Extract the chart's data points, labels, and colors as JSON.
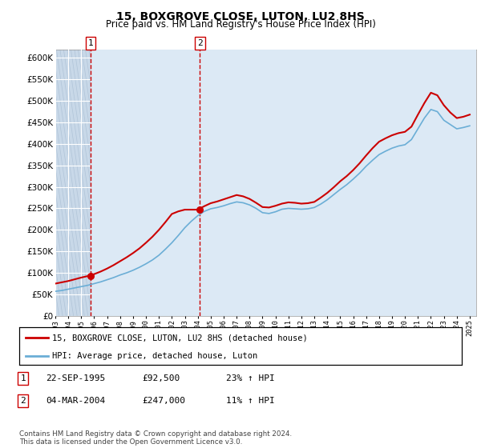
{
  "title": "15, BOXGROVE CLOSE, LUTON, LU2 8HS",
  "subtitle": "Price paid vs. HM Land Registry's House Price Index (HPI)",
  "title_fontsize": 10,
  "subtitle_fontsize": 8.5,
  "plot_bg_color": "#dce9f5",
  "hatch_bg_color": "#c8d8e8",
  "hatch_line_color": "#b0c4d8",
  "grid_color": "#ffffff",
  "ylim": [
    0,
    620000
  ],
  "yticks": [
    0,
    50000,
    100000,
    150000,
    200000,
    250000,
    300000,
    350000,
    400000,
    450000,
    500000,
    550000,
    600000
  ],
  "sale1_date": 1995.73,
  "sale1_price": 92500,
  "sale2_date": 2004.17,
  "sale2_price": 247000,
  "hpi_line_color": "#6baed6",
  "price_line_color": "#cc0000",
  "sale_marker_color": "#cc0000",
  "dashed_line_color": "#cc0000",
  "legend_label1": "15, BOXGROVE CLOSE, LUTON, LU2 8HS (detached house)",
  "legend_label2": "HPI: Average price, detached house, Luton",
  "annotation1_label": "1",
  "annotation1_date": "22-SEP-1995",
  "annotation1_price": "£92,500",
  "annotation1_hpi": "23% ↑ HPI",
  "annotation2_label": "2",
  "annotation2_date": "04-MAR-2004",
  "annotation2_price": "£247,000",
  "annotation2_hpi": "11% ↑ HPI",
  "footer": "Contains HM Land Registry data © Crown copyright and database right 2024.\nThis data is licensed under the Open Government Licence v3.0.",
  "hpi_years": [
    1993.0,
    1993.5,
    1994.0,
    1994.5,
    1995.0,
    1995.5,
    1996.0,
    1996.5,
    1997.0,
    1997.5,
    1998.0,
    1998.5,
    1999.0,
    1999.5,
    2000.0,
    2000.5,
    2001.0,
    2001.5,
    2002.0,
    2002.5,
    2003.0,
    2003.5,
    2004.0,
    2004.5,
    2005.0,
    2005.5,
    2006.0,
    2006.5,
    2007.0,
    2007.5,
    2008.0,
    2008.5,
    2009.0,
    2009.5,
    2010.0,
    2010.5,
    2011.0,
    2011.5,
    2012.0,
    2012.5,
    2013.0,
    2013.5,
    2014.0,
    2014.5,
    2015.0,
    2015.5,
    2016.0,
    2016.5,
    2017.0,
    2017.5,
    2018.0,
    2018.5,
    2019.0,
    2019.5,
    2020.0,
    2020.5,
    2021.0,
    2021.5,
    2022.0,
    2022.5,
    2023.0,
    2023.5,
    2024.0,
    2024.5,
    2025.0
  ],
  "hpi_values": [
    57000,
    59000,
    62000,
    65000,
    68000,
    71000,
    75000,
    79000,
    84000,
    89000,
    95000,
    100000,
    106000,
    113000,
    121000,
    130000,
    141000,
    155000,
    170000,
    187000,
    205000,
    220000,
    233000,
    243000,
    249000,
    252000,
    256000,
    261000,
    265000,
    263000,
    258000,
    250000,
    240000,
    238000,
    242000,
    248000,
    250000,
    249000,
    248000,
    249000,
    252000,
    260000,
    270000,
    282000,
    294000,
    305000,
    318000,
    332000,
    348000,
    362000,
    375000,
    383000,
    390000,
    395000,
    398000,
    410000,
    435000,
    460000,
    480000,
    475000,
    455000,
    445000,
    435000,
    438000,
    442000
  ],
  "price_years": [
    1993.0,
    1993.5,
    1994.0,
    1994.5,
    1995.0,
    1995.5,
    1996.0,
    1996.5,
    1997.0,
    1997.5,
    1998.0,
    1998.5,
    1999.0,
    1999.5,
    2000.0,
    2000.5,
    2001.0,
    2001.5,
    2002.0,
    2002.5,
    2003.0,
    2003.5,
    2004.0,
    2004.5,
    2005.0,
    2005.5,
    2006.0,
    2006.5,
    2007.0,
    2007.5,
    2008.0,
    2008.5,
    2009.0,
    2009.5,
    2010.0,
    2010.5,
    2011.0,
    2011.5,
    2012.0,
    2012.5,
    2013.0,
    2013.5,
    2014.0,
    2014.5,
    2015.0,
    2015.5,
    2016.0,
    2016.5,
    2017.0,
    2017.5,
    2018.0,
    2018.5,
    2019.0,
    2019.5,
    2020.0,
    2020.5,
    2021.0,
    2021.5,
    2022.0,
    2022.5,
    2023.0,
    2023.5,
    2024.0,
    2024.5,
    2025.0
  ],
  "price_values": [
    75000,
    78000,
    81000,
    85000,
    89000,
    92500,
    97000,
    103000,
    110000,
    118000,
    127000,
    136000,
    146000,
    157000,
    170000,
    184000,
    200000,
    218000,
    237000,
    243000,
    247000,
    247000,
    247000,
    255000,
    262000,
    266000,
    271000,
    276000,
    281000,
    278000,
    272000,
    263000,
    253000,
    252000,
    256000,
    261000,
    264000,
    263000,
    261000,
    262000,
    265000,
    275000,
    286000,
    299000,
    313000,
    325000,
    339000,
    355000,
    373000,
    390000,
    405000,
    413000,
    420000,
    425000,
    428000,
    440000,
    468000,
    495000,
    519000,
    513000,
    490000,
    473000,
    460000,
    463000,
    468000
  ],
  "xlim_start": 1993.0,
  "xlim_end": 2025.5,
  "xtick_years": [
    1993,
    1994,
    1995,
    1996,
    1997,
    1998,
    1999,
    2000,
    2001,
    2002,
    2003,
    2004,
    2005,
    2006,
    2007,
    2008,
    2009,
    2010,
    2011,
    2012,
    2013,
    2014,
    2015,
    2016,
    2017,
    2018,
    2019,
    2020,
    2021,
    2022,
    2023,
    2024,
    2025
  ]
}
